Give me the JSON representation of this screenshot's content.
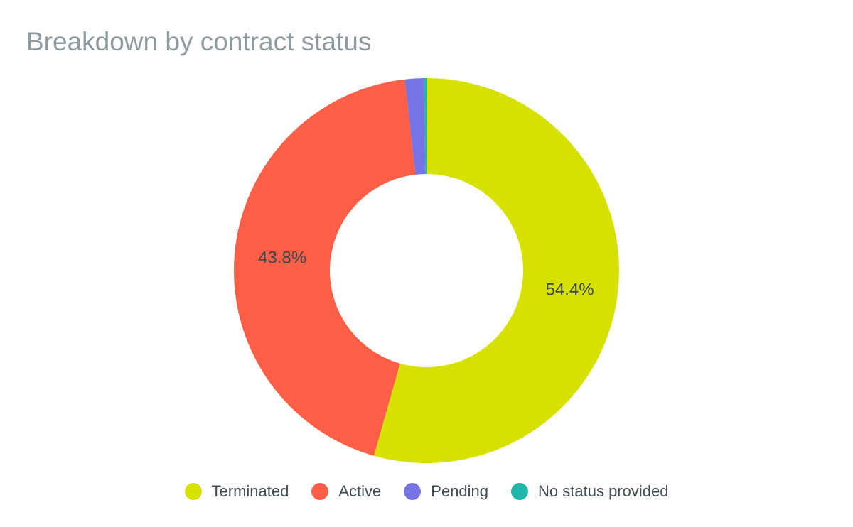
{
  "chart_data": {
    "type": "pie",
    "title": "Breakdown by contract status",
    "donut": true,
    "categories": [
      "Terminated",
      "Active",
      "Pending",
      "No status provided"
    ],
    "values": [
      54.4,
      43.8,
      1.6,
      0.2
    ],
    "colors": [
      "#d6e100",
      "#fd5f46",
      "#7474e6",
      "#1fb5a8"
    ],
    "data_labels": [
      "54.4%",
      "43.8%",
      "",
      ""
    ],
    "legend_position": "bottom"
  }
}
